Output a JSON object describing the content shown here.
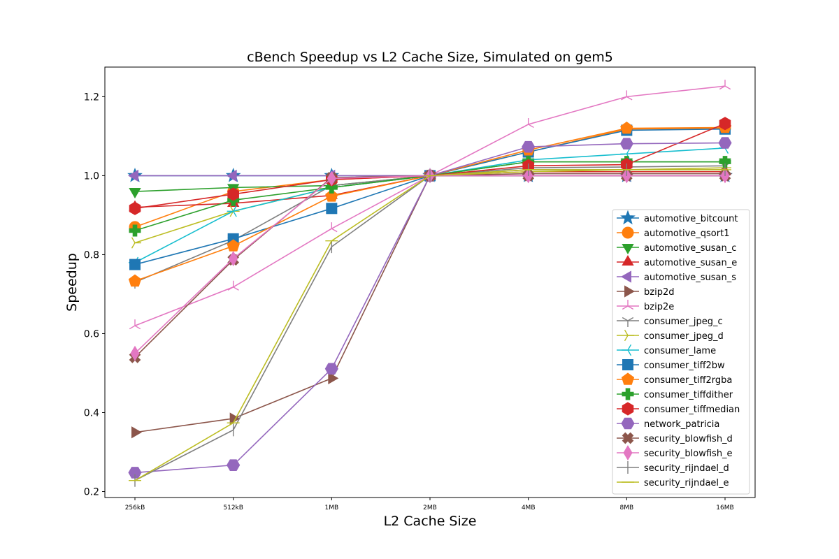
{
  "chart_data": {
    "type": "line",
    "title": "cBench Speedup vs L2 Cache Size, Simulated on gem5",
    "xlabel": "L2 Cache Size",
    "ylabel": "Speedup",
    "categories": [
      "256kB",
      "512kB",
      "1MB",
      "2MB",
      "4MB",
      "8MB",
      "16MB"
    ],
    "ylim": [
      0.185,
      1.275
    ],
    "yticks": [
      "0.2",
      "0.4",
      "0.6",
      "0.8",
      "1.0",
      "1.2"
    ],
    "grid": false,
    "legend_position": "lower right",
    "series": [
      {
        "name": "automotive_bitcount",
        "color": "#1f77b4",
        "marker": "star",
        "values": [
          1.0,
          1.0,
          1.0,
          1.0,
          1.0,
          1.0,
          1.0
        ]
      },
      {
        "name": "automotive_qsort1",
        "color": "#ff7f0e",
        "marker": "circle",
        "values": [
          0.87,
          0.96,
          0.99,
          1.0,
          1.06,
          1.118,
          1.12
        ]
      },
      {
        "name": "automotive_susan_c",
        "color": "#2ca02c",
        "marker": "triangle-down",
        "values": [
          0.96,
          0.97,
          0.975,
          1.0,
          1.035,
          1.035,
          1.035
        ]
      },
      {
        "name": "automotive_susan_e",
        "color": "#d62728",
        "marker": "triangle-up",
        "values": [
          0.92,
          0.93,
          0.95,
          1.0,
          1.01,
          1.01,
          1.01
        ]
      },
      {
        "name": "automotive_susan_s",
        "color": "#9467bd",
        "marker": "triangle-left",
        "values": [
          1.0,
          1.0,
          1.0,
          1.0,
          1.0,
          1.0,
          1.0
        ]
      },
      {
        "name": "bzip2d",
        "color": "#8c564b",
        "marker": "triangle-right",
        "values": [
          0.35,
          0.385,
          0.487,
          1.0,
          1.005,
          1.005,
          1.005
        ]
      },
      {
        "name": "bzip2e",
        "color": "#e377c2",
        "marker": "tri-down",
        "values": [
          0.62,
          0.718,
          0.866,
          1.0,
          1.13,
          1.2,
          1.227
        ]
      },
      {
        "name": "consumer_jpeg_c",
        "color": "#7f7f7f",
        "marker": "tri-up",
        "values": [
          0.73,
          0.836,
          0.975,
          1.0,
          1.02,
          1.022,
          1.025
        ]
      },
      {
        "name": "consumer_jpeg_d",
        "color": "#bcbd22",
        "marker": "tri-left",
        "values": [
          0.83,
          0.91,
          0.97,
          1.0,
          1.01,
          1.015,
          1.02
        ]
      },
      {
        "name": "consumer_lame",
        "color": "#17becf",
        "marker": "tri-right",
        "values": [
          0.78,
          0.91,
          0.97,
          1.0,
          1.04,
          1.055,
          1.07
        ]
      },
      {
        "name": "consumer_tiff2bw",
        "color": "#1f77b4",
        "marker": "square",
        "values": [
          0.775,
          0.84,
          0.917,
          1.0,
          1.06,
          1.115,
          1.118
        ]
      },
      {
        "name": "consumer_tiff2rgba",
        "color": "#ff7f0e",
        "marker": "pentagon",
        "values": [
          0.733,
          0.822,
          0.948,
          1.0,
          1.065,
          1.12,
          1.122
        ]
      },
      {
        "name": "consumer_tiffdither",
        "color": "#2ca02c",
        "marker": "plus",
        "values": [
          0.861,
          0.938,
          0.97,
          1.0,
          1.035,
          1.035,
          1.035
        ]
      },
      {
        "name": "consumer_tiffmedian",
        "color": "#d62728",
        "marker": "hexagon",
        "values": [
          0.917,
          0.953,
          0.99,
          1.0,
          1.025,
          1.028,
          1.132
        ]
      },
      {
        "name": "network_patricia",
        "color": "#9467bd",
        "marker": "hexagon2",
        "values": [
          0.248,
          0.267,
          0.511,
          1.0,
          1.073,
          1.081,
          1.083
        ]
      },
      {
        "name": "security_blowfish_d",
        "color": "#8c564b",
        "marker": "x-filled",
        "values": [
          0.54,
          0.787,
          0.995,
          1.0,
          1.0,
          1.0,
          1.0
        ]
      },
      {
        "name": "security_blowfish_e",
        "color": "#e377c2",
        "marker": "diamond",
        "values": [
          0.55,
          0.79,
          0.993,
          1.0,
          1.0,
          1.0,
          1.0
        ]
      },
      {
        "name": "security_rijndael_d",
        "color": "#7f7f7f",
        "marker": "vline",
        "values": [
          0.228,
          0.356,
          0.82,
          1.0,
          1.015,
          1.015,
          1.015
        ]
      },
      {
        "name": "security_rijndael_e",
        "color": "#bcbd22",
        "marker": "hline",
        "values": [
          0.228,
          0.374,
          0.835,
          1.0,
          1.015,
          1.015,
          1.015
        ]
      }
    ]
  }
}
